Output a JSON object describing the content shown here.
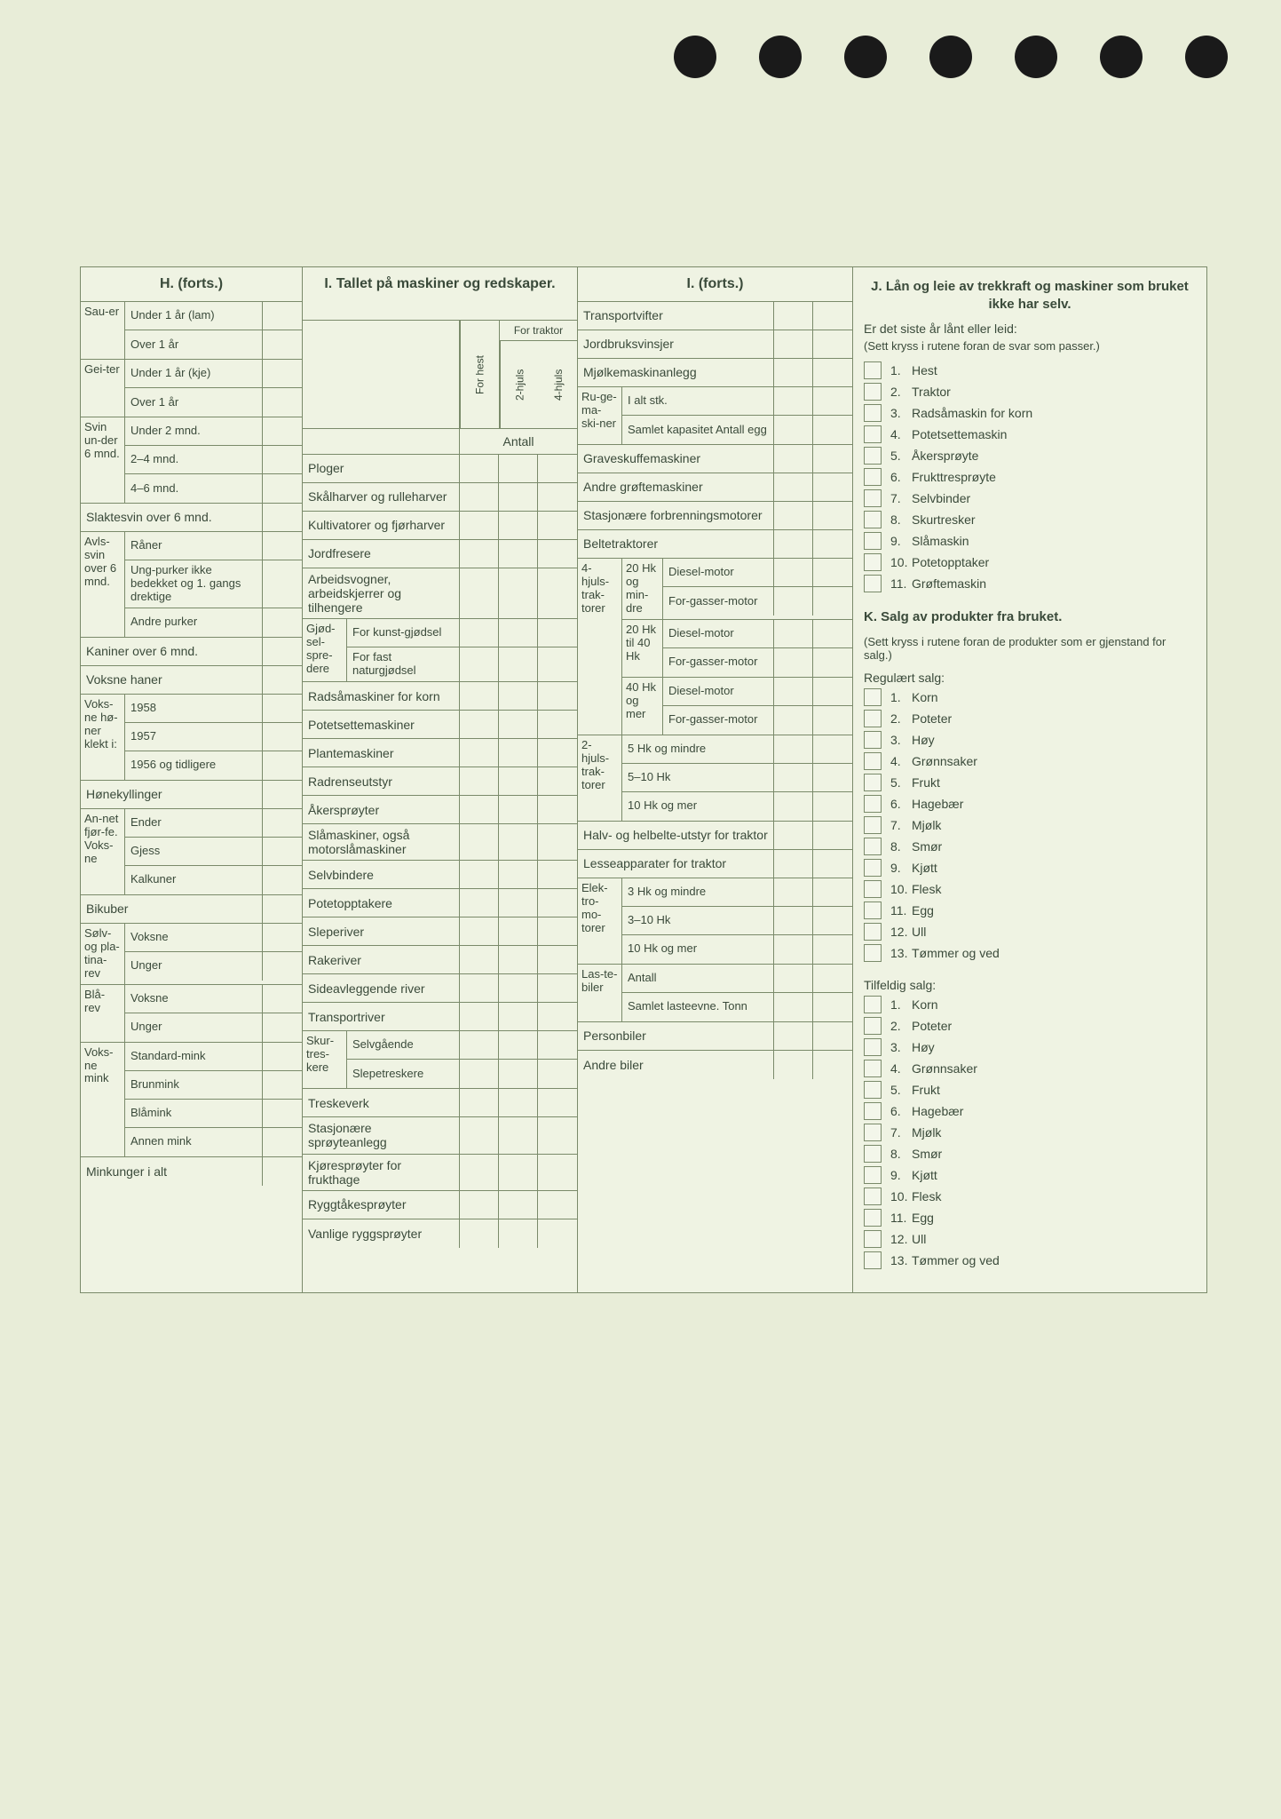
{
  "colors": {
    "bg": "#e8edd8",
    "page": "#eff3e3",
    "border": "#7a8a6a",
    "text": "#3a4a3a",
    "hole": "#1a1a1a"
  },
  "H": {
    "title": "H. (forts.)",
    "groups": [
      {
        "side": "Sau-er",
        "rows": [
          "Under 1 år (lam)",
          "Over 1 år"
        ]
      },
      {
        "side": "Gei-ter",
        "rows": [
          "Under 1 år (kje)",
          "Over 1 år"
        ]
      },
      {
        "side": "Svin un-der 6 mnd.",
        "rows": [
          "Under 2 mnd.",
          "2–4 mnd.",
          "4–6 mnd."
        ]
      }
    ],
    "simple1": [
      "Slaktesvin over 6 mnd."
    ],
    "avls": {
      "side": "Avls-svin over 6 mnd.",
      "rows": [
        "Råner",
        "Ung-purker ikke bedekket og 1. gangs drektige",
        "Andre purker"
      ]
    },
    "simple2": [
      "Kaniner over 6 mnd.",
      "Voksne haner"
    ],
    "honer": {
      "side": "Voks-ne hø-ner klekt i:",
      "rows": [
        "1958",
        "1957",
        "1956 og tidligere"
      ]
    },
    "simple3": [
      "Hønekyllinger"
    ],
    "fjorfe": {
      "side": "An-net fjør-fe. Voks-ne",
      "rows": [
        "Ender",
        "Gjess",
        "Kalkuner"
      ]
    },
    "simple4": [
      "Bikuber"
    ],
    "rev1": {
      "side": "Sølv- og pla-tina-rev",
      "rows": [
        "Voksne",
        "Unger"
      ]
    },
    "rev2": {
      "side": "Blå-rev",
      "rows": [
        "Voksne",
        "Unger"
      ]
    },
    "mink": {
      "side": "Voks-ne mink",
      "rows": [
        "Standard-mink",
        "Brunmink",
        "Blåmink",
        "Annen mink"
      ]
    },
    "simple5": [
      "Minkunger i alt"
    ]
  },
  "I1": {
    "title": "I. Tallet på maskiner og redskaper.",
    "th": {
      "forhest": "For hest",
      "fortraktor": "For traktor",
      "h2": "2-hjuls",
      "h4": "4-hjuls"
    },
    "antall": "Antall",
    "rows1": [
      "Ploger",
      "Skålharver og rulleharver",
      "Kultivatorer og fjørharver",
      "Jordfresere",
      "Arbeidsvogner, arbeidskjerrer og tilhengere"
    ],
    "gjod": {
      "side": "Gjød-sel-spre-dere",
      "rows": [
        "For kunst-gjødsel",
        "For fast naturgjødsel"
      ]
    },
    "rows2": [
      "Radsåmaskiner for korn",
      "Potetsettemaskiner",
      "Plantemaskiner",
      "Radrenseutstyr",
      "Åkersprøyter",
      "Slåmaskiner, også motorslåmaskiner",
      "Selvbindere",
      "Potetopptakere",
      "Sleperiver",
      "Rakeriver",
      "Sideavleggende river",
      "Transportriver"
    ],
    "skur": {
      "side": "Skur-tres-kere",
      "rows": [
        "Selvgående",
        "Slepetreskere"
      ]
    },
    "rows3": [
      "Treskeverk",
      "Stasjonære sprøyteanlegg",
      "Kjøresprøyter for frukthage",
      "Ryggtåkesprøyter",
      "Vanlige ryggsprøyter"
    ]
  },
  "I2": {
    "title": "I. (forts.)",
    "rows1": [
      "Transportvifter",
      "Jordbruksvinsjer",
      "Mjølkemaskinanlegg"
    ],
    "ruge": {
      "side": "Ru-ge-ma-ski-ner",
      "rows": [
        "I alt stk.",
        "Samlet kapasitet Antall egg"
      ]
    },
    "rows2": [
      "Graveskuffemaskiner",
      "Andre grøftemaskiner",
      "Stasjonære forbrenningsmotorer",
      "Beltetraktorer"
    ],
    "hjul4": {
      "side": "4-hjuls-trak-torer",
      "sub": [
        {
          "side": "20 Hk og min-dre",
          "rows": [
            "Diesel-motor",
            "For-gasser-motor"
          ]
        },
        {
          "side": "20 Hk til 40 Hk",
          "rows": [
            "Diesel-motor",
            "For-gasser-motor"
          ]
        },
        {
          "side": "40 Hk og mer",
          "rows": [
            "Diesel-motor",
            "For-gasser-motor"
          ]
        }
      ]
    },
    "hjul2": {
      "side": "2-hjuls-trak-torer",
      "rows": [
        "5 Hk og mindre",
        "5–10 Hk",
        "10 Hk og mer"
      ]
    },
    "rows3": [
      "Halv- og helbelte-utstyr for traktor",
      "Lesseapparater for traktor"
    ],
    "elek": {
      "side": "Elek-tro-mo-torer",
      "rows": [
        "3 Hk og mindre",
        "3–10 Hk",
        "10 Hk og mer"
      ]
    },
    "last": {
      "side": "Las-te-biler",
      "rows": [
        "Antall",
        "Samlet lasteevne. Tonn"
      ]
    },
    "rows4": [
      "Personbiler",
      "Andre biler"
    ]
  },
  "J": {
    "title": "J. Lån og leie av trekkraft og maskiner som bruket ikke har selv.",
    "q": "Er det siste år lånt eller leid:",
    "note": "(Sett kryss i rutene foran de svar som passer.)",
    "items": [
      "Hest",
      "Traktor",
      "Radsåmaskin for korn",
      "Potetsettemaskin",
      "Åkersprøyte",
      "Frukttresprøyte",
      "Selvbinder",
      "Skurtresker",
      "Slåmaskin",
      "Potetopptaker",
      "Grøftemaskin"
    ]
  },
  "K": {
    "title": "K. Salg av produkter fra bruket.",
    "note": "(Sett kryss i rutene foran de produkter som er gjenstand for salg.)",
    "reg_label": "Regulært salg:",
    "reg": [
      "Korn",
      "Poteter",
      "Høy",
      "Grønnsaker",
      "Frukt",
      "Hagebær",
      "Mjølk",
      "Smør",
      "Kjøtt",
      "Flesk",
      "Egg",
      "Ull",
      "Tømmer og ved"
    ],
    "til_label": "Tilfeldig salg:",
    "til": [
      "Korn",
      "Poteter",
      "Høy",
      "Grønnsaker",
      "Frukt",
      "Hagebær",
      "Mjølk",
      "Smør",
      "Kjøtt",
      "Flesk",
      "Egg",
      "Ull",
      "Tømmer og ved"
    ]
  }
}
